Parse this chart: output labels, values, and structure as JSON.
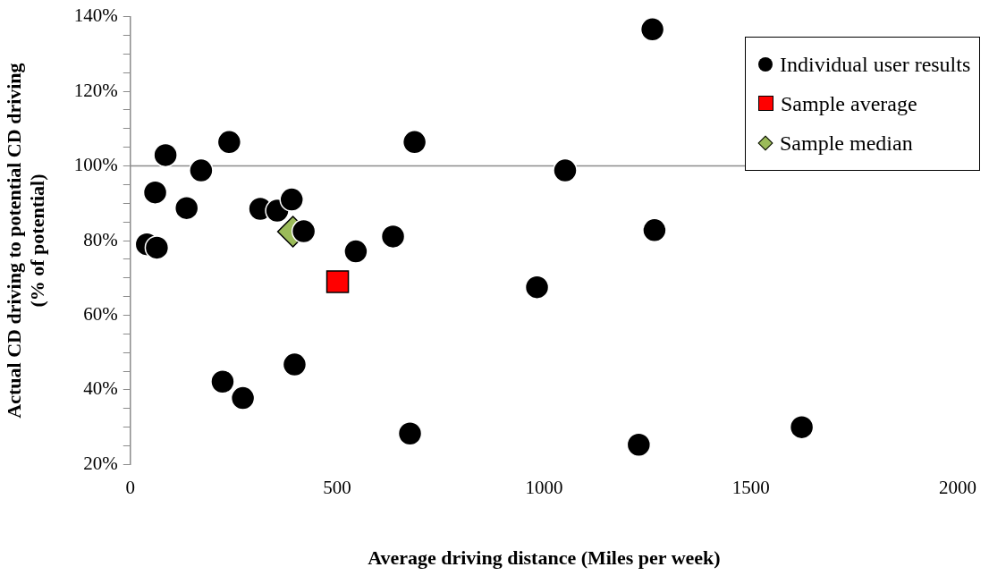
{
  "chart_data": {
    "type": "scatter",
    "xlabel": "Average driving distance (Miles per week)",
    "ylabel": "Actual CD driving to potential CD driving\n(% of potential)",
    "xlim": [
      0,
      2000
    ],
    "xticks": [
      0,
      500,
      1000,
      1500,
      2000
    ],
    "ylim": [
      20,
      140
    ],
    "yticks": [
      {
        "value": 20,
        "label": "20%"
      },
      {
        "value": 25,
        "label": null
      },
      {
        "value": 30,
        "label": null
      },
      {
        "value": 35,
        "label": null
      },
      {
        "value": 40,
        "label": "40%"
      },
      {
        "value": 45,
        "label": null
      },
      {
        "value": 50,
        "label": null
      },
      {
        "value": 55,
        "label": null
      },
      {
        "value": 60,
        "label": "60%"
      },
      {
        "value": 65,
        "label": null
      },
      {
        "value": 70,
        "label": null
      },
      {
        "value": 75,
        "label": null
      },
      {
        "value": 80,
        "label": "80%"
      },
      {
        "value": 85,
        "label": null
      },
      {
        "value": 90,
        "label": null
      },
      {
        "value": 95,
        "label": null
      },
      {
        "value": 100,
        "label": "100%"
      },
      {
        "value": 105,
        "label": null
      },
      {
        "value": 110,
        "label": null
      },
      {
        "value": 115,
        "label": null
      },
      {
        "value": 120,
        "label": "120%"
      },
      {
        "value": 125,
        "label": null
      },
      {
        "value": 130,
        "label": null
      },
      {
        "value": 135,
        "label": null
      },
      {
        "value": 140,
        "label": "140%"
      }
    ],
    "ref_lines": [
      {
        "axis": "y",
        "value": 100,
        "color": "#8c8c8c"
      }
    ],
    "grid": false,
    "legend": "top right",
    "series": [
      {
        "name": "Individual user results",
        "color": "#000000",
        "marker": "circle",
        "x": [
          85,
          239,
          171,
          60,
          136,
          40,
          64,
          314,
          355,
          390,
          419,
          545,
          635,
          687,
          983,
          397,
          223,
          272,
          676,
          1262,
          1051,
          1267,
          1229,
          1623
        ],
        "values": [
          102.9,
          106.4,
          98.8,
          92.9,
          88.7,
          79.0,
          78.1,
          88.5,
          88.0,
          91.0,
          82.5,
          77.1,
          81.1,
          106.4,
          67.5,
          46.8,
          42.2,
          37.8,
          28.3,
          136.6,
          98.8,
          82.8,
          25.3,
          30.0
        ]
      },
      {
        "name": "Sample average",
        "color": "#ff0000",
        "marker": "square",
        "x": [
          501
        ],
        "values": [
          69.0
        ]
      },
      {
        "name": "Sample median",
        "color": "#9bbb59",
        "marker": "diamond",
        "x": [
          393
        ],
        "values": [
          82.4
        ]
      }
    ]
  }
}
